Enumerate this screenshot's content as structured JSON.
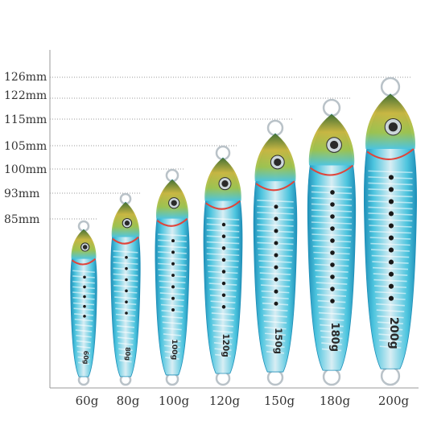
{
  "size_labels": [
    "126mm",
    "122mm",
    "115mm",
    "105mm",
    "100mm",
    "93mm",
    "85mm"
  ],
  "weight_labels": [
    "60g",
    "80g",
    "100g",
    "120g",
    "150g",
    "180g",
    "200g"
  ],
  "body_markings": [
    "60g",
    "80g",
    "100g",
    "120g",
    "150g",
    "180g",
    "200g"
  ],
  "colors": {
    "axis": "#9a9a9a",
    "dotted_line": "#9a9a9a",
    "text": "#333333",
    "lure_blue": "#4cc4de",
    "lure_deep_blue": "#1f8fb8",
    "lure_silver": "#d8e8ee",
    "lure_head_gold": "#c9b43a",
    "lure_head_green": "#7fae3e",
    "gill_red": "#e0443a",
    "eye": "#2a2a2a",
    "ring": "#b9c2c8"
  }
}
